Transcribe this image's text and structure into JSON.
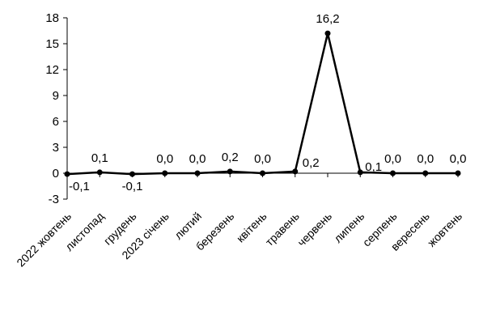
{
  "chart_data": {
    "type": "line",
    "title": "",
    "xlabel": "",
    "ylabel": "",
    "ylim": [
      -3,
      18
    ],
    "yticks": [
      -3,
      0,
      3,
      6,
      9,
      12,
      15,
      18
    ],
    "ytick_labels": [
      "-3",
      "0",
      "3",
      "6",
      "9",
      "12",
      "15",
      "18"
    ],
    "grid": false,
    "legend": "none",
    "categories": [
      "2022 жовтень",
      "листопад",
      "грудень",
      "2023 січень",
      "лютий",
      "березень",
      "квітень",
      "травень",
      "червень",
      "липень",
      "серпень",
      "вересень",
      "жовтень"
    ],
    "series": [
      {
        "values": [
          -0.1,
          0.1,
          -0.1,
          0.0,
          0.0,
          0.2,
          0.0,
          0.2,
          16.2,
          0.1,
          0.0,
          0.0,
          0.0
        ],
        "labels": [
          "-0,1",
          "0,1",
          "-0,1",
          "0,0",
          "0,0",
          "0,2",
          "0,0",
          "0,2",
          "16,2",
          "0,1",
          "0,0",
          "0,0",
          "0,0"
        ],
        "label_positions": [
          "right",
          "above",
          "below",
          "above",
          "above",
          "above",
          "above",
          "right",
          "above",
          "right",
          "above",
          "above",
          "above"
        ],
        "color": "#000000",
        "marker": "circle"
      }
    ]
  }
}
